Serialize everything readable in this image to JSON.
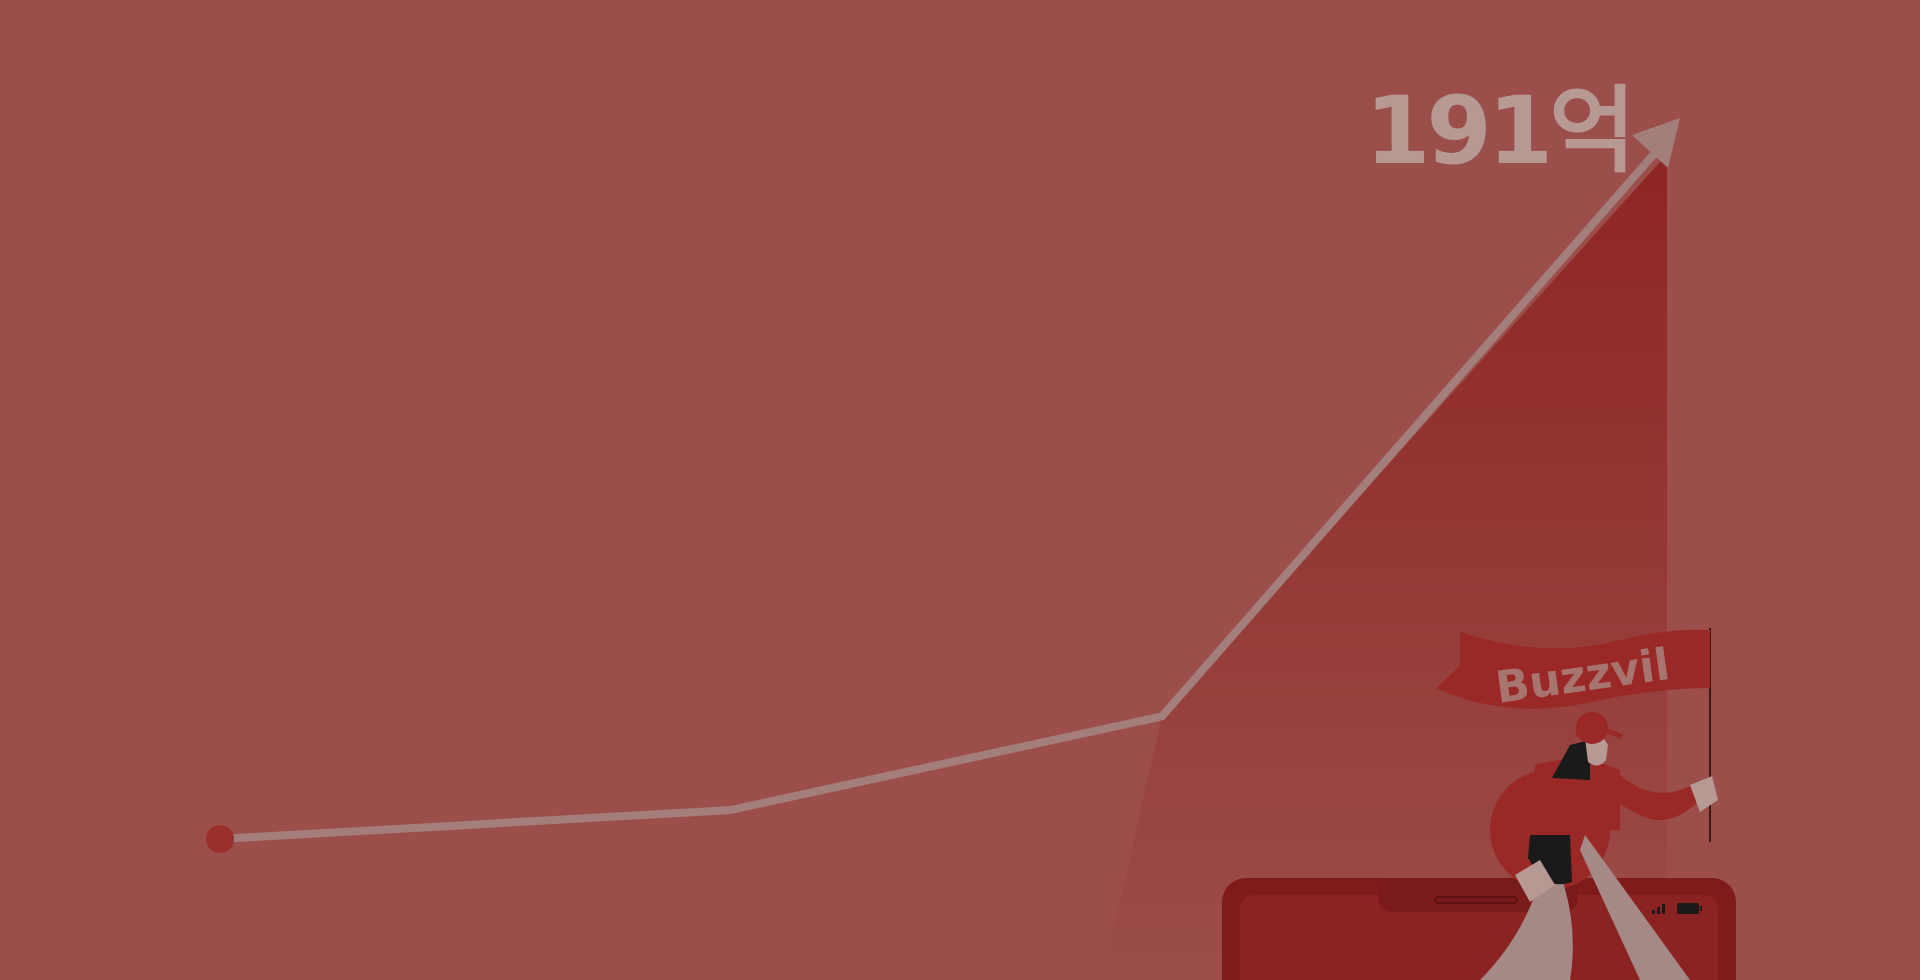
{
  "headline": "191억",
  "brand_flag_text": "Buzzvil",
  "colors": {
    "background": "#9b4e4a",
    "line": "#a47e7b",
    "area_fill": "#8e2523",
    "start_dot": "#9b2f2c",
    "headline_text": "#b79994"
  },
  "icons": {
    "arrow_head": "arrow-up-right-icon",
    "mascot": "person-with-flag-illustration",
    "device": "phone-frame-illustration",
    "status": [
      "signal-icon",
      "battery-icon"
    ]
  },
  "chart_data": {
    "type": "line",
    "title": "",
    "xlabel": "",
    "ylabel": "",
    "grid": false,
    "legend": "none",
    "x": [
      0,
      1,
      2,
      3
    ],
    "values": [
      5,
      9,
      22,
      100
    ],
    "ylim": [
      0,
      100
    ],
    "final_label": "191억"
  }
}
